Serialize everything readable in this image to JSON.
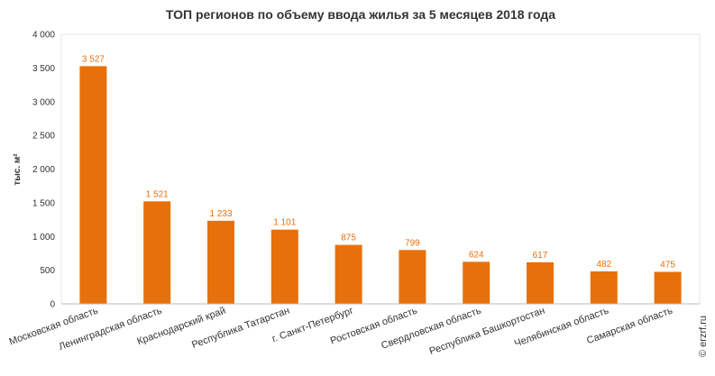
{
  "chart_data": {
    "type": "bar",
    "title": "ТОП регионов по объему ввода жилья за 5 месяцев 2018 года",
    "ylabel": "тыс. м²",
    "xlabel": "",
    "credit": "© erzrf.ru",
    "categories": [
      "Московская область",
      "Ленинградская область",
      "Краснодарский край",
      "Республика Татарстан",
      "г. Санкт-Петербург",
      "Ростовская область",
      "Свердловская область",
      "Республика Башкортостан",
      "Челябинская область",
      "Самарская область"
    ],
    "values": [
      3527,
      1521,
      1233,
      1101,
      875,
      799,
      624,
      617,
      482,
      475
    ],
    "value_labels": [
      "3 527",
      "1 521",
      "1 233",
      "1 101",
      "875",
      "799",
      "624",
      "617",
      "482",
      "475"
    ],
    "ylim": [
      0,
      4000
    ],
    "yticks": [
      0,
      500,
      1000,
      1500,
      2000,
      2500,
      3000,
      3500,
      4000
    ],
    "ytick_labels": [
      "0",
      "500",
      "1 000",
      "1 500",
      "2 000",
      "2 500",
      "3 000",
      "3 500",
      "4 000"
    ],
    "grid": false,
    "bar_color": "#e8700a",
    "label_color": "#e8700a"
  }
}
